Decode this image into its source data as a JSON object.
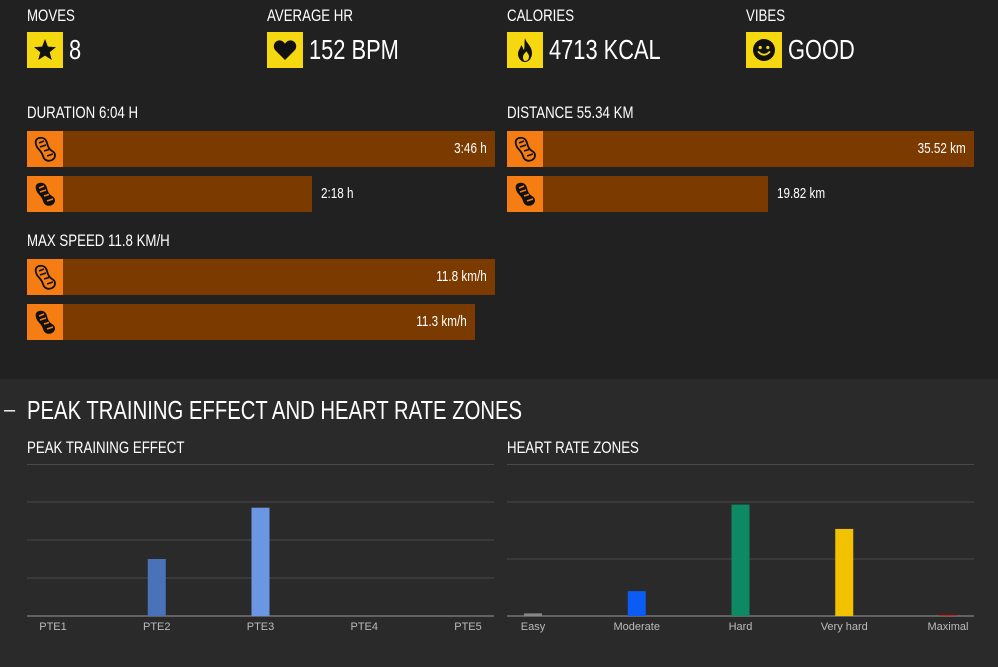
{
  "stats": [
    {
      "label": "MOVES",
      "value": "8",
      "icon": "star-icon"
    },
    {
      "label": "AVERAGE HR",
      "value": "152 BPM",
      "icon": "heart-icon"
    },
    {
      "label": "CALORIES",
      "value": "4713 KCAL",
      "icon": "flame-icon"
    },
    {
      "label": "VIBES",
      "value": "GOOD",
      "icon": "smiley-icon"
    }
  ],
  "duration": {
    "label": "DURATION 6:04 H",
    "bars": [
      {
        "value": "3:46 h",
        "fraction": 1.0,
        "icon": "left-footprint-icon"
      },
      {
        "value": "2:18 h",
        "fraction": 0.61,
        "icon": "right-footprint-icon"
      }
    ]
  },
  "distance": {
    "label": "DISTANCE 55.34 KM",
    "bars": [
      {
        "value": "35.52 km",
        "fraction": 1.0,
        "icon": "left-footprint-icon"
      },
      {
        "value": "19.82 km",
        "fraction": 0.558,
        "icon": "right-footprint-icon"
      }
    ]
  },
  "max_speed": {
    "label": "MAX SPEED 11.8 KM/H",
    "bars": [
      {
        "value": "11.8 km/h",
        "fraction": 1.0,
        "icon": "left-footprint-icon"
      },
      {
        "value": "11.3 km/h",
        "fraction": 0.957,
        "icon": "right-footprint-icon"
      }
    ]
  },
  "colors": {
    "stat_icon_bg": "#f5d80f",
    "bar_bg": "#7b3a00",
    "bar_icon_bg": "#f57d14"
  },
  "lower_section": {
    "collapse_symbol": "–",
    "title": "PEAK TRAINING EFFECT AND HEART RATE ZONES"
  },
  "chart_data": [
    {
      "type": "bar",
      "title": "PEAK TRAINING EFFECT",
      "categories": [
        "PTE1",
        "PTE2",
        "PTE3",
        "PTE4",
        "PTE5"
      ],
      "values": [
        0,
        1.5,
        2.85,
        0,
        0
      ],
      "colors": [
        "#4a72b8",
        "#4a72b8",
        "#6b96e3",
        "#4a72b8",
        "#4a72b8"
      ],
      "ylim": [
        0,
        3
      ],
      "grid": true
    },
    {
      "type": "bar",
      "title": "HEART RATE ZONES",
      "categories": [
        "Easy",
        "Moderate",
        "Hard",
        "Very hard",
        "Maximal"
      ],
      "values": [
        0.05,
        0.48,
        2.15,
        1.68,
        0.02
      ],
      "colors": [
        "#888888",
        "#0a5cf5",
        "#0d8a63",
        "#f2c200",
        "#cc2222"
      ],
      "ylim": [
        0,
        2.2
      ],
      "grid": true
    }
  ]
}
